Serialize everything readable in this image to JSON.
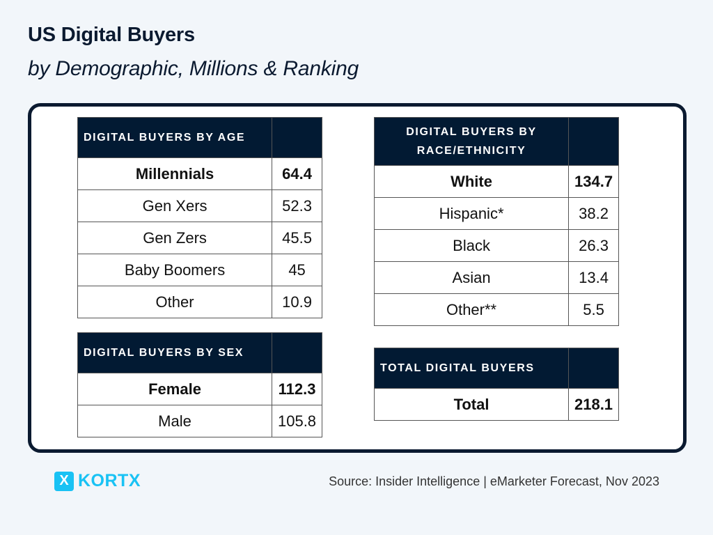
{
  "header": {
    "title": "US Digital Buyers",
    "subtitle": "by Demographic, Millions & Ranking"
  },
  "tables": {
    "age": {
      "heading": "DIGITAL BUYERS BY AGE",
      "rows": [
        {
          "label": "Millennials",
          "value": "64.4",
          "bold": true
        },
        {
          "label": "Gen Xers",
          "value": "52.3"
        },
        {
          "label": "Gen Zers",
          "value": "45.5"
        },
        {
          "label": "Baby Boomers",
          "value": "45"
        },
        {
          "label": "Other",
          "value": "10.9"
        }
      ]
    },
    "sex": {
      "heading": "DIGITAL BUYERS BY SEX",
      "rows": [
        {
          "label": "Female",
          "value": "112.3",
          "bold": true
        },
        {
          "label": "Male",
          "value": "105.8"
        }
      ]
    },
    "race": {
      "heading_line1": "DIGITAL BUYERS BY",
      "heading_line2": "RACE/ETHNICITY",
      "rows": [
        {
          "label": "White",
          "value": "134.7",
          "bold": true
        },
        {
          "label": "Hispanic*",
          "value": "38.2"
        },
        {
          "label": "Black",
          "value": "26.3"
        },
        {
          "label": "Asian",
          "value": "13.4"
        },
        {
          "label": "Other**",
          "value": "5.5"
        }
      ]
    },
    "total": {
      "heading": "TOTAL DIGITAL BUYERS",
      "rows": [
        {
          "label": "Total",
          "value": "218.1",
          "bold": true
        }
      ]
    }
  },
  "footer": {
    "logo_mark": "X",
    "logo_text": "KORTX",
    "source": "Source: Insider Intelligence | eMarketer Forecast, Nov 2023"
  },
  "colors": {
    "background": "#f2f6fa",
    "header_fill": "#021a33",
    "brand": "#19c2f4"
  }
}
